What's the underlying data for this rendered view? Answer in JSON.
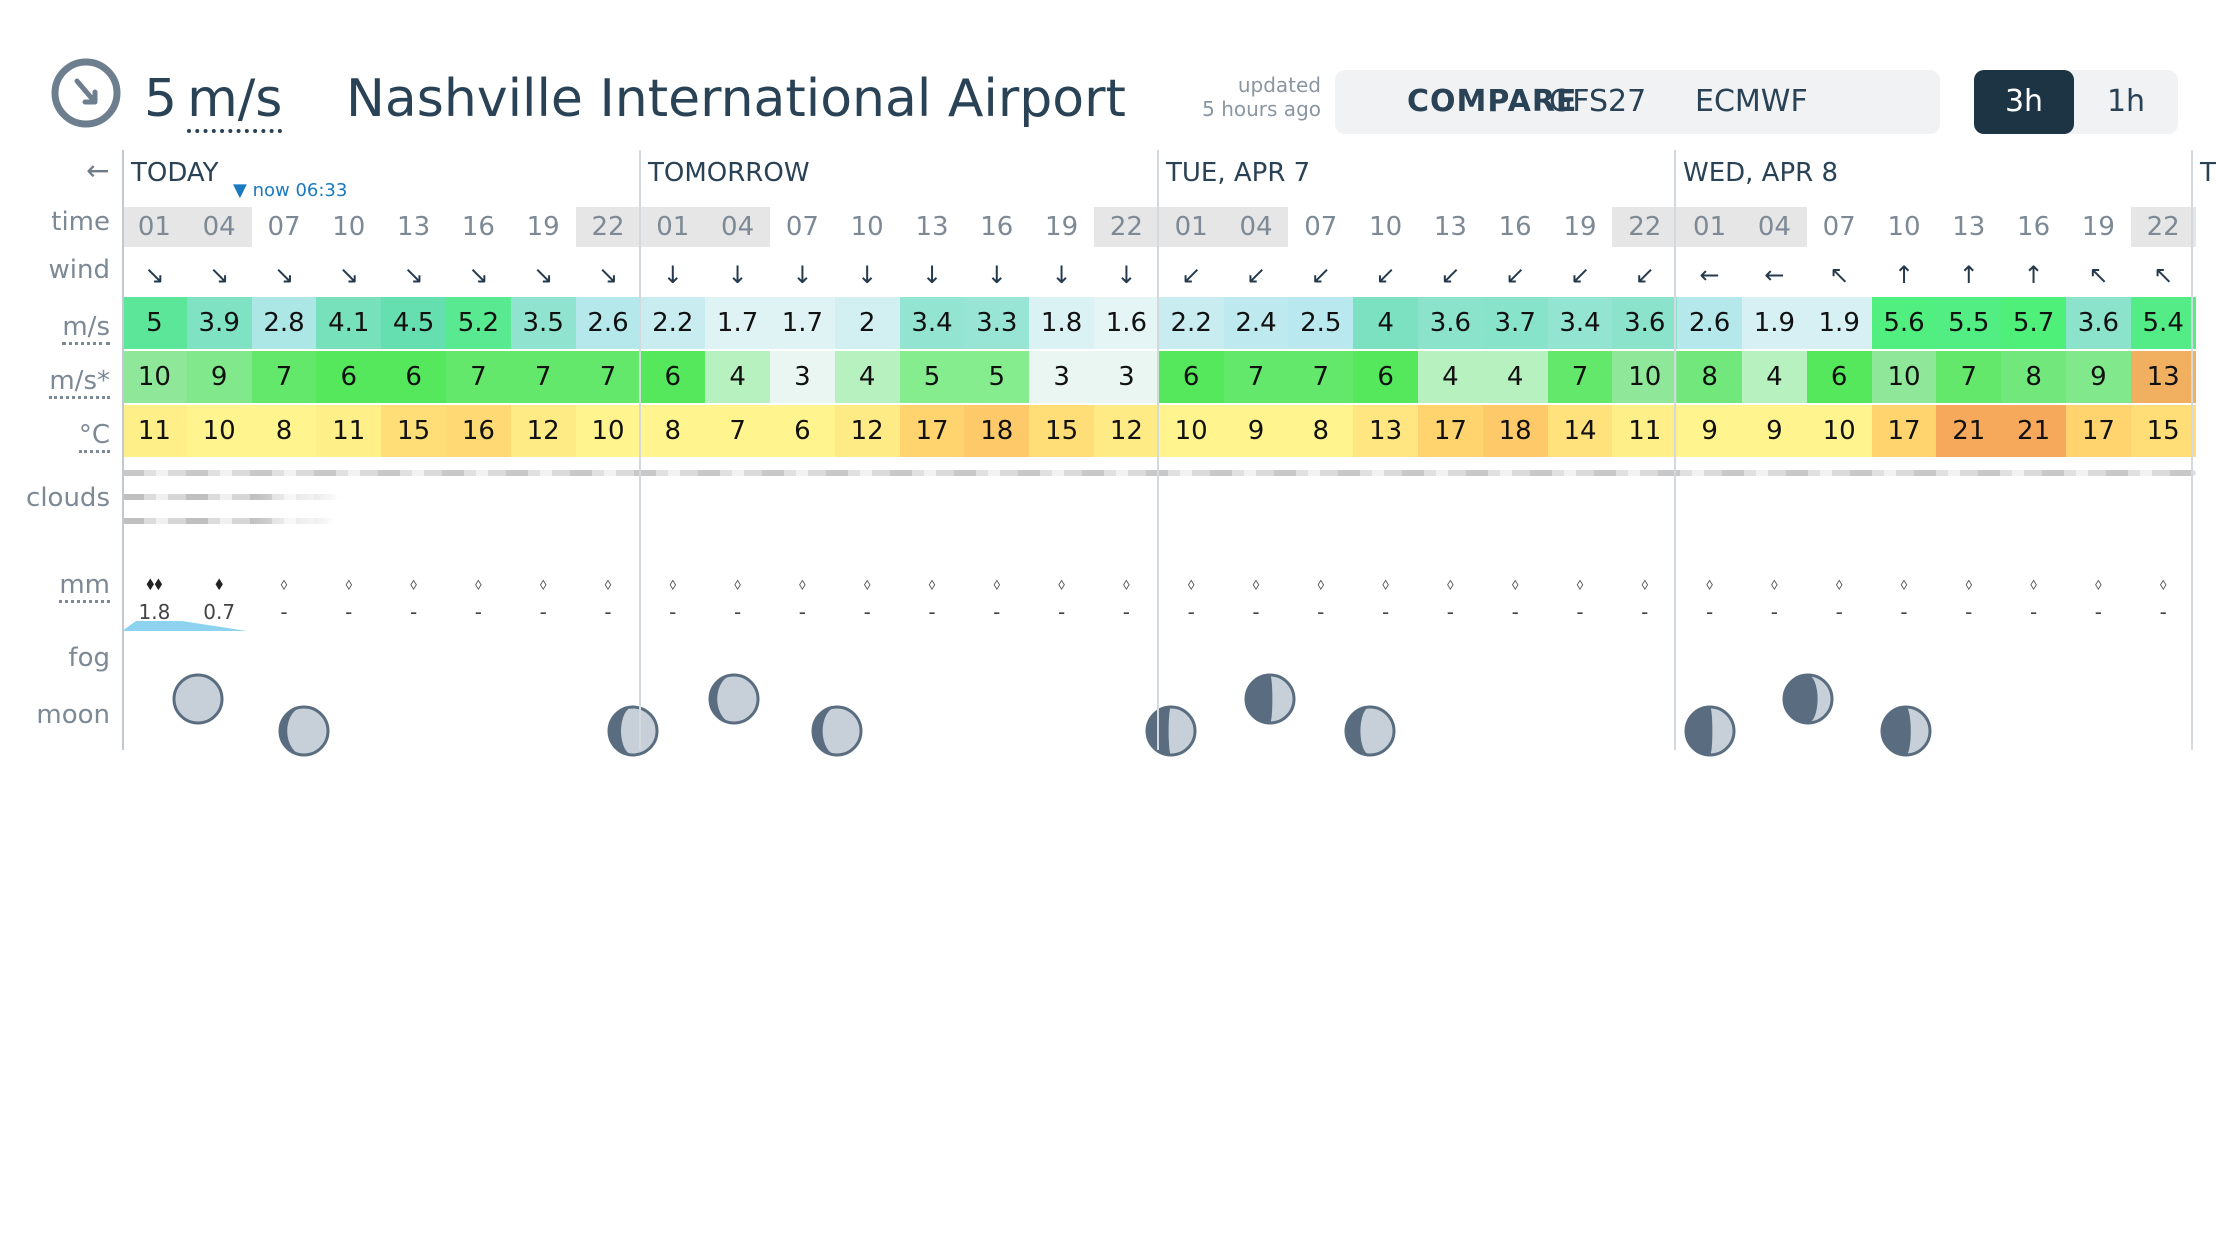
{
  "header": {
    "clock_icon": "clock-arrow-icon",
    "wind_now_value": "5",
    "wind_now_unit": "m/s",
    "station": "Nashville International Airport",
    "updated_line1": "updated",
    "updated_line2": "5 hours ago",
    "models": [
      "COMPARE",
      "GFS27",
      "ECMWF"
    ],
    "steps": [
      "3h",
      "1h"
    ],
    "active_step": "3h"
  },
  "labels": {
    "back": "←",
    "time": "time",
    "wind": "wind",
    "wind_speed": "m/s",
    "gusts": "m/s*",
    "temp": "°C",
    "clouds": "clouds",
    "precip": "mm",
    "fog": "fog",
    "moon": "moon"
  },
  "now_marker": "now 06:33",
  "days": [
    {
      "label": "TODAY"
    },
    {
      "label": "TOMORROW"
    },
    {
      "label": "TUE, APR 7"
    },
    {
      "label": "WED, APR 8"
    },
    {
      "label": "T"
    }
  ],
  "hours": [
    "01",
    "04",
    "07",
    "10",
    "13",
    "16",
    "19",
    "22",
    "01",
    "04",
    "07",
    "10",
    "13",
    "16",
    "19",
    "22",
    "01",
    "04",
    "07",
    "10",
    "13",
    "16",
    "19",
    "22",
    "01",
    "04",
    "07",
    "10",
    "13",
    "16",
    "19",
    "22"
  ],
  "night_hours": [
    0,
    1,
    7,
    8,
    9,
    15,
    16,
    17,
    23,
    24,
    25,
    31
  ],
  "wind_dir": [
    "↘",
    "↘",
    "↘",
    "↘",
    "↘",
    "↘",
    "↘",
    "↘",
    "↓",
    "↓",
    "↓",
    "↓",
    "↓",
    "↓",
    "↓",
    "↓",
    "↙",
    "↙",
    "↙",
    "↙",
    "↙",
    "↙",
    "↙",
    "↙",
    "←",
    "←",
    "↖",
    "↑",
    "↑",
    "↑",
    "↖",
    "↖"
  ],
  "wind_speed": [
    "5",
    "3.9",
    "2.8",
    "4.1",
    "4.5",
    "5.2",
    "3.5",
    "2.6",
    "2.2",
    "1.7",
    "1.7",
    "2",
    "3.4",
    "3.3",
    "1.8",
    "1.6",
    "2.2",
    "2.4",
    "2.5",
    "4",
    "3.6",
    "3.7",
    "3.4",
    "3.6",
    "2.6",
    "1.9",
    "1.9",
    "5.6",
    "5.5",
    "5.7",
    "3.6",
    "5.4"
  ],
  "gusts": [
    "10",
    "9",
    "7",
    "6",
    "6",
    "7",
    "7",
    "7",
    "6",
    "4",
    "3",
    "4",
    "5",
    "5",
    "3",
    "3",
    "6",
    "7",
    "7",
    "6",
    "4",
    "4",
    "7",
    "10",
    "8",
    "4",
    "6",
    "10",
    "7",
    "8",
    "9",
    "13"
  ],
  "temperature": [
    "11",
    "10",
    "8",
    "11",
    "15",
    "16",
    "12",
    "10",
    "8",
    "7",
    "6",
    "12",
    "17",
    "18",
    "15",
    "12",
    "10",
    "9",
    "8",
    "13",
    "17",
    "18",
    "14",
    "11",
    "9",
    "9",
    "10",
    "17",
    "21",
    "21",
    "17",
    "15"
  ],
  "precip": [
    "1.8",
    "0.7",
    "-",
    "-",
    "-",
    "-",
    "-",
    "-",
    "-",
    "-",
    "-",
    "-",
    "-",
    "-",
    "-",
    "-",
    "-",
    "-",
    "-",
    "-",
    "-",
    "-",
    "-",
    "-",
    "-",
    "-",
    "-",
    "-",
    "-",
    "-",
    "-",
    "-"
  ],
  "precip_icons": [
    "drops-icon",
    "drop-icon",
    "empty-drop-icon"
  ],
  "colors": {
    "wind_scale": {
      "low": "#eaf6f6",
      "mid": "#b9e8ee",
      "high": "#66dfb0",
      "top": "#4ef07a"
    },
    "gust_scale": {
      "low": "#e9f6f2",
      "mid": "#8fe89a",
      "high": "#55e85d",
      "warn": "#f0b060"
    },
    "temp_scale": {
      "cool": "#fff48e",
      "warm": "#ffd46e",
      "hot": "#f7a95b"
    },
    "night_band": "#e6e6e6",
    "rain": "#8dd3f0"
  }
}
